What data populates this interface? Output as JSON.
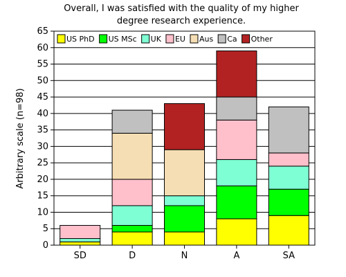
{
  "chart_data": {
    "type": "bar",
    "stacked": true,
    "title_lines": [
      "Overall, I was satisfied with the quality of my higher",
      "degree research experience."
    ],
    "xlabel": "",
    "ylabel": "Arbitrary scale (n=98)",
    "ylim": [
      0,
      65
    ],
    "yticks": [
      0,
      5,
      10,
      15,
      20,
      25,
      30,
      35,
      40,
      45,
      50,
      55,
      60,
      65
    ],
    "grid": true,
    "legend_position": "top",
    "categories": [
      "SD",
      "D",
      "N",
      "A",
      "SA"
    ],
    "series": [
      {
        "name": "US PhD",
        "color": "#ffff00",
        "values": [
          1,
          4,
          4,
          8,
          9
        ]
      },
      {
        "name": "US MSc",
        "color": "#00ff00",
        "values": [
          0,
          2,
          8,
          10,
          8
        ]
      },
      {
        "name": "UK",
        "color": "#7fffd4",
        "values": [
          1,
          6,
          3,
          8,
          7
        ]
      },
      {
        "name": "EU",
        "color": "#ffc0cb",
        "values": [
          4,
          8,
          0,
          12,
          4
        ]
      },
      {
        "name": "Aus",
        "color": "#f5deb3",
        "values": [
          0,
          14,
          14,
          0,
          0
        ]
      },
      {
        "name": "Ca",
        "color": "#c0c0c0",
        "values": [
          0,
          7,
          0,
          7,
          14
        ]
      },
      {
        "name": "Other",
        "color": "#b22222",
        "values": [
          0,
          0,
          14,
          14,
          0
        ]
      }
    ]
  }
}
